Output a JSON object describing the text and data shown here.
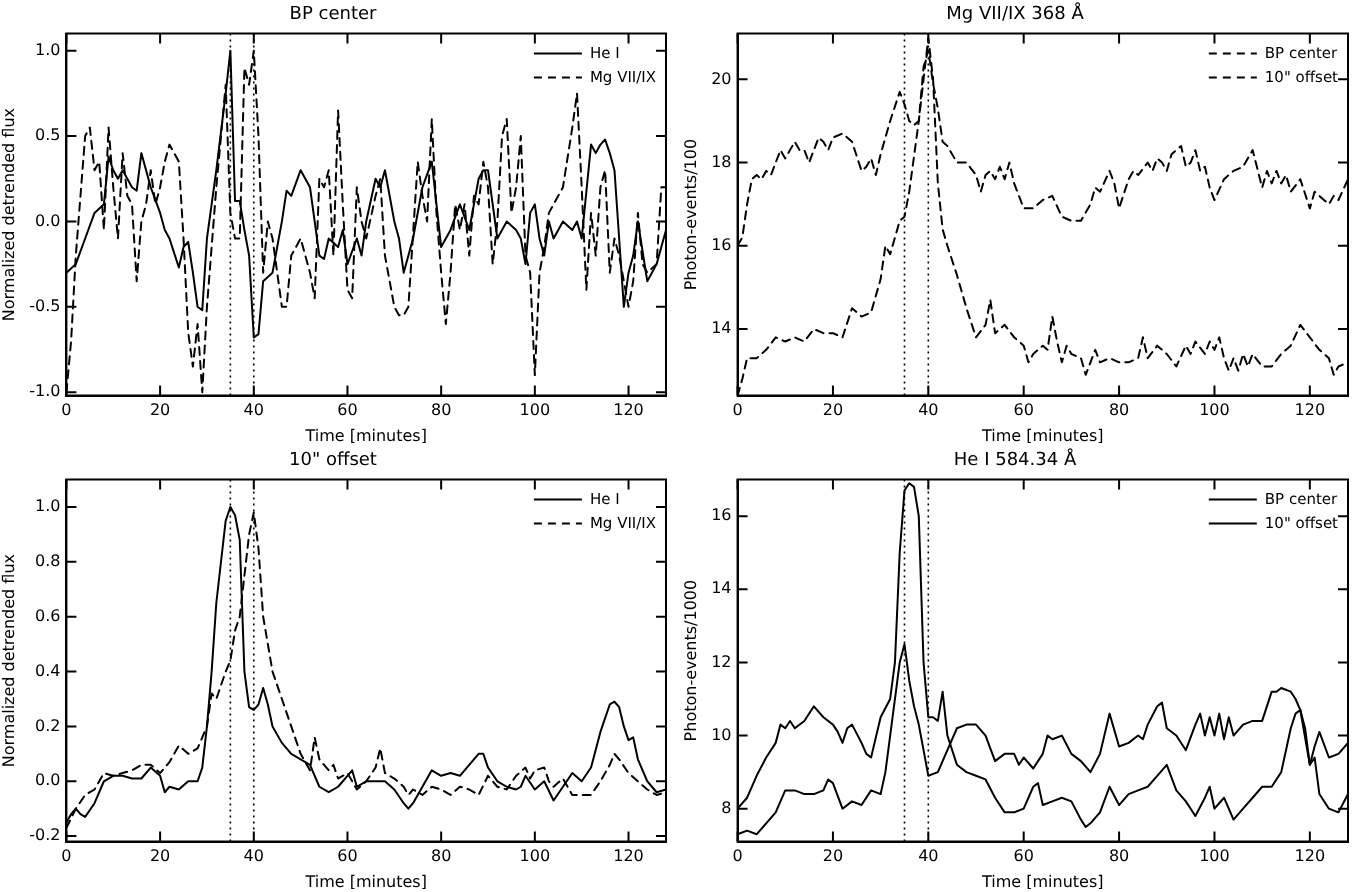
{
  "chart_data": [
    {
      "type": "line",
      "title": "BP center",
      "xlabel": "Time [minutes]",
      "ylabel": "Normalized detrended flux",
      "xlim": [
        0,
        128
      ],
      "xticks": [
        0,
        20,
        40,
        60,
        80,
        100,
        120
      ],
      "ylim": [
        -1.02,
        1.1
      ],
      "yticks": [
        {
          "value": -1,
          "label": "-1.0"
        },
        {
          "value": -0.5,
          "label": "-0.5"
        },
        {
          "value": 0,
          "label": "0.0"
        },
        {
          "value": 0.5,
          "label": "0.5"
        },
        {
          "value": 1,
          "label": "1.0"
        }
      ],
      "grid": false,
      "legend": "top right",
      "marker": "none",
      "ref_lines": [
        {
          "axis": "x",
          "value": 35,
          "color": "#000000",
          "line_style": "dotted"
        },
        {
          "axis": "x",
          "value": 40,
          "color": "#000000",
          "line_style": "dotted"
        }
      ],
      "series": [
        {
          "name": "He I",
          "color": "#000000",
          "line_style": "solid",
          "x": [
            0,
            2,
            4,
            6,
            8,
            9,
            10,
            11,
            12,
            14,
            15,
            16,
            18,
            20,
            21,
            22,
            24,
            25,
            26,
            27,
            28,
            29,
            30,
            32,
            34,
            35,
            36,
            37,
            38,
            39,
            40,
            41,
            42,
            44,
            46,
            47,
            48,
            50,
            52,
            54,
            55,
            56,
            58,
            59,
            60,
            62,
            63,
            64,
            66,
            67,
            68,
            70,
            71,
            72,
            74,
            76,
            78,
            79,
            80,
            82,
            84,
            86,
            88,
            89,
            90,
            92,
            94,
            96,
            97,
            98,
            99,
            100,
            101,
            102,
            103,
            104,
            106,
            108,
            109,
            110,
            112,
            113,
            114,
            115,
            116,
            117,
            118,
            119,
            120,
            121,
            122,
            124,
            126,
            128
          ],
          "values": [
            -0.3,
            -0.25,
            -0.1,
            0.05,
            0.1,
            0.38,
            0.3,
            0.25,
            0.3,
            0.2,
            0.18,
            0.4,
            0.2,
            0.05,
            -0.05,
            -0.1,
            -0.27,
            -0.15,
            -0.12,
            -0.3,
            -0.5,
            -0.52,
            -0.1,
            0.3,
            0.75,
            1.0,
            0.12,
            0.12,
            -0.05,
            -0.2,
            -0.68,
            -0.66,
            -0.35,
            -0.3,
            0.0,
            0.18,
            0.15,
            0.3,
            0.2,
            -0.2,
            -0.22,
            -0.1,
            -0.15,
            -0.05,
            -0.25,
            -0.1,
            -0.2,
            0.0,
            0.25,
            0.2,
            0.3,
            0.0,
            -0.1,
            -0.3,
            -0.1,
            0.2,
            0.35,
            0.1,
            -0.15,
            -0.05,
            0.1,
            -0.05,
            0.25,
            0.3,
            0.3,
            -0.1,
            0.0,
            -0.05,
            -0.1,
            -0.25,
            0.05,
            0.1,
            -0.1,
            -0.2,
            0.0,
            -0.1,
            0.0,
            -0.05,
            0.0,
            -0.1,
            0.45,
            0.4,
            0.45,
            0.48,
            0.4,
            0.3,
            -0.1,
            -0.5,
            -0.3,
            -0.2,
            0.0,
            -0.35,
            -0.25,
            -0.05
          ]
        },
        {
          "name": "Mg VII/IX",
          "color": "#000000",
          "line_style": "dashed",
          "x": [
            0,
            1,
            2,
            4,
            5,
            6,
            7,
            8,
            9,
            10,
            11,
            12,
            13,
            14,
            15,
            16,
            17,
            18,
            19,
            20,
            21,
            22,
            24,
            25,
            26,
            27,
            28,
            29,
            30,
            32,
            33,
            34,
            35,
            36,
            37,
            38,
            39,
            40,
            41,
            42,
            43,
            44,
            46,
            47,
            48,
            50,
            52,
            53,
            54,
            55,
            56,
            57,
            58,
            59,
            60,
            61,
            62,
            63,
            64,
            66,
            67,
            68,
            70,
            71,
            72,
            73,
            75,
            76,
            77,
            78,
            79,
            80,
            81,
            82,
            83,
            84,
            85,
            86,
            87,
            88,
            89,
            90,
            91,
            92,
            93,
            94,
            95,
            96,
            97,
            98,
            99,
            100,
            101,
            102,
            103,
            104,
            106,
            108,
            109,
            110,
            111,
            112,
            113,
            114,
            115,
            116,
            117,
            118,
            120,
            121,
            122,
            123,
            124,
            126,
            127,
            128
          ],
          "values": [
            -1.0,
            -0.7,
            -0.2,
            0.5,
            0.55,
            0.3,
            0.35,
            -0.05,
            0.55,
            0.2,
            -0.1,
            0.4,
            0.15,
            0.1,
            -0.35,
            0.0,
            0.1,
            0.3,
            0.1,
            0.2,
            0.35,
            0.45,
            0.35,
            -0.1,
            -0.65,
            -0.85,
            -0.6,
            -1.0,
            -0.5,
            0.2,
            0.5,
            0.8,
            0.05,
            -0.1,
            -0.1,
            0.9,
            0.8,
            1.0,
            0.5,
            -0.3,
            0.0,
            -0.1,
            -0.5,
            -0.5,
            -0.2,
            -0.1,
            -0.3,
            -0.45,
            0.25,
            0.2,
            0.3,
            -0.2,
            0.65,
            0.1,
            -0.4,
            -0.45,
            0.2,
            0.0,
            -0.1,
            0.15,
            0.25,
            -0.2,
            -0.5,
            -0.55,
            -0.55,
            -0.5,
            0.35,
            0.15,
            0.0,
            0.6,
            0.05,
            -0.3,
            -0.6,
            -0.3,
            0.1,
            -0.05,
            0.1,
            -0.2,
            0.15,
            0.1,
            0.35,
            0.2,
            -0.25,
            0.0,
            0.5,
            0.6,
            0.05,
            0.2,
            0.5,
            -0.2,
            -0.3,
            -0.9,
            -0.3,
            -0.15,
            0.05,
            0.1,
            0.2,
            0.55,
            0.75,
            0.2,
            -0.4,
            0.05,
            -0.2,
            0.2,
            0.3,
            -0.3,
            -0.1,
            -0.2,
            -0.5,
            -0.35,
            0.05,
            -0.25,
            -0.3,
            -0.25,
            0.2,
            0.2
          ]
        }
      ]
    },
    {
      "type": "line",
      "title": "Mg VII/IX 368 Å",
      "xlabel": "Time [minutes]",
      "ylabel": "Photon-events/100",
      "xlim": [
        0,
        128
      ],
      "xticks": [
        0,
        20,
        40,
        60,
        80,
        100,
        120
      ],
      "ylim": [
        12.4,
        21.1
      ],
      "yticks": [
        14,
        16,
        18,
        20
      ],
      "grid": false,
      "legend": "top right",
      "marker": "none",
      "ref_lines": [
        {
          "axis": "x",
          "value": 35,
          "color": "#000000",
          "line_style": "dotted"
        },
        {
          "axis": "x",
          "value": 40,
          "color": "#000000",
          "line_style": "dotted"
        }
      ],
      "series": [
        {
          "name": "BP center",
          "color": "#000000",
          "line_style": "dashed",
          "x": [
            0,
            1,
            2,
            3,
            4,
            5,
            6,
            7,
            8,
            9,
            10,
            11,
            12,
            13,
            14,
            15,
            16,
            17,
            18,
            19,
            20,
            22,
            24,
            26,
            27,
            28,
            29,
            30,
            32,
            34,
            35,
            36,
            37,
            38,
            39,
            40,
            41,
            42,
            43,
            44,
            46,
            48,
            50,
            51,
            52,
            53,
            54,
            55,
            56,
            57,
            58,
            60,
            62,
            64,
            66,
            68,
            70,
            72,
            74,
            75,
            76,
            78,
            79,
            80,
            82,
            83,
            84,
            86,
            87,
            88,
            89,
            90,
            91,
            92,
            93,
            94,
            95,
            96,
            97,
            98,
            99,
            100,
            102,
            104,
            106,
            108,
            110,
            111,
            112,
            113,
            114,
            115,
            116,
            118,
            120,
            121,
            122,
            124,
            125,
            126,
            128
          ],
          "values": [
            16.0,
            16.2,
            17.0,
            17.6,
            17.7,
            17.6,
            17.8,
            17.7,
            18.0,
            18.3,
            18.1,
            18.3,
            18.5,
            18.3,
            18.3,
            18.0,
            18.3,
            18.6,
            18.5,
            18.3,
            18.6,
            18.7,
            18.5,
            17.8,
            17.9,
            18.1,
            17.7,
            18.2,
            19.0,
            19.7,
            19.4,
            19.0,
            18.9,
            19.0,
            20.3,
            20.7,
            19.9,
            19.3,
            18.5,
            18.4,
            18.0,
            18.0,
            17.7,
            17.3,
            17.7,
            17.8,
            17.6,
            17.9,
            17.6,
            18.0,
            17.5,
            16.9,
            16.9,
            17.1,
            17.2,
            16.7,
            16.6,
            16.6,
            17.0,
            17.4,
            17.3,
            17.8,
            17.5,
            16.9,
            17.6,
            17.8,
            17.7,
            18.0,
            17.8,
            18.1,
            18.0,
            17.8,
            18.2,
            18.3,
            18.4,
            17.9,
            18.0,
            18.3,
            17.8,
            17.9,
            17.4,
            17.1,
            17.6,
            17.8,
            17.9,
            18.3,
            17.4,
            17.8,
            17.5,
            17.8,
            17.5,
            17.7,
            17.3,
            17.6,
            16.9,
            17.3,
            17.2,
            17.0,
            17.2,
            17.1,
            17.6
          ]
        },
        {
          "name": "10\" offset",
          "color": "#000000",
          "line_style": "dashed",
          "x": [
            0,
            1,
            2,
            4,
            6,
            8,
            10,
            12,
            14,
            16,
            18,
            20,
            22,
            24,
            26,
            28,
            30,
            31,
            32,
            34,
            35,
            36,
            38,
            39,
            40,
            41,
            42,
            43,
            44,
            46,
            48,
            50,
            52,
            53,
            54,
            56,
            58,
            60,
            61,
            62,
            64,
            65,
            66,
            67,
            68,
            69,
            70,
            72,
            73,
            74,
            75,
            76,
            78,
            80,
            82,
            84,
            85,
            86,
            88,
            89,
            90,
            92,
            94,
            95,
            96,
            98,
            99,
            100,
            101,
            102,
            103,
            104,
            105,
            106,
            107,
            108,
            110,
            112,
            114,
            116,
            118,
            120,
            122,
            124,
            125,
            126,
            128
          ],
          "values": [
            12.4,
            12.8,
            13.3,
            13.3,
            13.5,
            13.8,
            13.7,
            13.8,
            13.7,
            14.0,
            13.9,
            13.9,
            13.8,
            14.5,
            14.3,
            14.4,
            15.2,
            16.0,
            15.8,
            16.6,
            16.7,
            17.3,
            19.0,
            20.0,
            21.0,
            20.0,
            17.5,
            16.4,
            16.0,
            15.3,
            14.5,
            13.8,
            14.1,
            14.7,
            13.9,
            14.1,
            13.8,
            13.6,
            13.2,
            13.4,
            13.6,
            13.5,
            14.3,
            13.7,
            13.2,
            13.6,
            13.4,
            13.3,
            12.9,
            13.2,
            13.5,
            13.2,
            13.3,
            13.2,
            13.2,
            13.3,
            13.8,
            13.3,
            13.6,
            13.5,
            13.4,
            13.1,
            13.6,
            13.4,
            13.7,
            13.4,
            13.7,
            13.5,
            13.8,
            13.3,
            13.0,
            13.3,
            13.0,
            13.4,
            13.1,
            13.4,
            13.1,
            13.1,
            13.4,
            13.6,
            14.1,
            13.8,
            13.5,
            13.3,
            12.9,
            13.1,
            13.2
          ]
        }
      ]
    },
    {
      "type": "line",
      "title": "10\" offset",
      "xlabel": "Time [minutes]",
      "ylabel": "Normalized detrended flux",
      "xlim": [
        0,
        128
      ],
      "xticks": [
        0,
        20,
        40,
        60,
        80,
        100,
        120
      ],
      "ylim": [
        -0.22,
        1.1
      ],
      "yticks": [
        {
          "value": -0.2,
          "label": "-0.2"
        },
        {
          "value": 0,
          "label": "0.0"
        },
        {
          "value": 0.2,
          "label": "0.2"
        },
        {
          "value": 0.4,
          "label": "0.4"
        },
        {
          "value": 0.6,
          "label": "0.6"
        },
        {
          "value": 0.8,
          "label": "0.8"
        },
        {
          "value": 1,
          "label": "1.0"
        }
      ],
      "grid": false,
      "legend": "top right",
      "marker": "none",
      "ref_lines": [
        {
          "axis": "x",
          "value": 35,
          "color": "#000000",
          "line_style": "dotted"
        },
        {
          "axis": "x",
          "value": 40,
          "color": "#000000",
          "line_style": "dotted"
        }
      ],
      "series": [
        {
          "name": "He I",
          "color": "#000000",
          "line_style": "solid",
          "x": [
            0,
            1,
            2,
            3,
            4,
            6,
            8,
            10,
            12,
            14,
            16,
            18,
            20,
            21,
            22,
            24,
            26,
            28,
            29,
            30,
            31,
            32,
            34,
            35,
            36,
            37,
            38,
            39,
            40,
            41,
            42,
            43,
            44,
            46,
            48,
            50,
            52,
            54,
            56,
            58,
            60,
            61,
            62,
            64,
            66,
            68,
            70,
            72,
            73,
            74,
            76,
            78,
            80,
            82,
            84,
            86,
            88,
            89,
            90,
            92,
            94,
            96,
            97,
            98,
            100,
            102,
            104,
            106,
            108,
            110,
            112,
            114,
            116,
            117,
            118,
            119,
            120,
            121,
            122,
            124,
            126,
            128
          ],
          "values": [
            -0.15,
            -0.12,
            -0.1,
            -0.12,
            -0.13,
            -0.08,
            0.0,
            0.02,
            0.02,
            0.01,
            0.01,
            0.05,
            0.02,
            -0.04,
            -0.02,
            -0.03,
            0.0,
            0.0,
            0.05,
            0.2,
            0.4,
            0.65,
            0.95,
            1.0,
            0.97,
            0.88,
            0.4,
            0.27,
            0.26,
            0.28,
            0.34,
            0.28,
            0.2,
            0.14,
            0.1,
            0.08,
            0.06,
            -0.02,
            -0.04,
            -0.02,
            0.02,
            0.04,
            -0.02,
            0.0,
            0.0,
            0.0,
            -0.03,
            -0.08,
            -0.1,
            -0.08,
            -0.02,
            0.04,
            0.02,
            0.03,
            0.02,
            0.06,
            0.1,
            0.1,
            0.05,
            0.0,
            -0.02,
            -0.03,
            -0.02,
            0.02,
            -0.03,
            0.0,
            -0.07,
            -0.02,
            0.03,
            0.0,
            0.05,
            0.18,
            0.28,
            0.29,
            0.27,
            0.2,
            0.15,
            0.16,
            0.08,
            0.0,
            -0.04,
            -0.03
          ]
        },
        {
          "name": "Mg VII/IX",
          "color": "#000000",
          "line_style": "dashed",
          "x": [
            0,
            2,
            4,
            6,
            8,
            10,
            12,
            14,
            16,
            18,
            20,
            22,
            24,
            26,
            28,
            30,
            31,
            32,
            34,
            35,
            36,
            37,
            38,
            39,
            40,
            41,
            42,
            44,
            46,
            48,
            50,
            52,
            53,
            54,
            56,
            57,
            58,
            60,
            62,
            64,
            66,
            67,
            68,
            70,
            72,
            73,
            74,
            76,
            78,
            80,
            82,
            84,
            86,
            88,
            90,
            92,
            94,
            96,
            98,
            99,
            100,
            102,
            103,
            104,
            106,
            108,
            110,
            112,
            114,
            116,
            117,
            118,
            120,
            122,
            124,
            126,
            128
          ],
          "values": [
            -0.17,
            -0.1,
            -0.05,
            -0.03,
            0.03,
            0.02,
            0.03,
            0.04,
            0.06,
            0.06,
            0.03,
            0.07,
            0.13,
            0.1,
            0.12,
            0.2,
            0.32,
            0.3,
            0.4,
            0.44,
            0.55,
            0.6,
            0.75,
            0.9,
            0.98,
            0.85,
            0.6,
            0.4,
            0.3,
            0.2,
            0.1,
            0.04,
            0.16,
            0.08,
            0.04,
            0.06,
            0.01,
            0.03,
            -0.03,
            0.0,
            0.05,
            0.12,
            0.03,
            0.01,
            -0.02,
            -0.05,
            -0.03,
            -0.05,
            -0.02,
            -0.03,
            -0.05,
            -0.02,
            -0.03,
            -0.05,
            0.02,
            -0.02,
            -0.03,
            0.02,
            0.05,
            0.01,
            0.04,
            0.05,
            0.0,
            -0.02,
            0.01,
            -0.05,
            -0.05,
            -0.05,
            0.0,
            0.06,
            0.1,
            0.08,
            0.03,
            0.0,
            -0.03,
            -0.05,
            -0.04
          ]
        }
      ]
    },
    {
      "type": "line",
      "title": "He I 584.34 Å",
      "xlabel": "Time [minutes]",
      "ylabel": "Photon-events/1000",
      "xlim": [
        0,
        128
      ],
      "xticks": [
        0,
        20,
        40,
        60,
        80,
        100,
        120
      ],
      "ylim": [
        7.1,
        17.0
      ],
      "yticks": [
        8,
        10,
        12,
        14,
        16
      ],
      "grid": false,
      "legend": "top right",
      "marker": "none",
      "ref_lines": [
        {
          "axis": "x",
          "value": 35,
          "color": "#000000",
          "line_style": "dotted"
        },
        {
          "axis": "x",
          "value": 40,
          "color": "#000000",
          "line_style": "dotted"
        }
      ],
      "series": [
        {
          "name": "BP center",
          "color": "#000000",
          "line_style": "solid",
          "x": [
            0,
            2,
            4,
            6,
            8,
            9,
            10,
            11,
            12,
            14,
            16,
            18,
            20,
            21,
            22,
            23,
            24,
            26,
            27,
            28,
            30,
            32,
            33,
            34,
            35,
            36,
            37,
            38,
            39,
            40,
            41,
            42,
            43,
            44,
            46,
            48,
            50,
            52,
            54,
            56,
            58,
            60,
            62,
            63,
            64,
            66,
            68,
            70,
            72,
            73,
            74,
            76,
            78,
            80,
            82,
            84,
            86,
            88,
            90,
            92,
            94,
            96,
            98,
            99,
            100,
            102,
            104,
            106,
            108,
            110,
            112,
            114,
            116,
            117,
            118,
            119,
            120,
            121,
            122,
            124,
            126,
            128
          ],
          "values": [
            8.0,
            8.3,
            8.9,
            9.4,
            9.8,
            10.3,
            10.2,
            10.4,
            10.2,
            10.4,
            10.8,
            10.5,
            10.3,
            10.1,
            9.8,
            10.2,
            10.3,
            9.8,
            9.5,
            9.4,
            10.5,
            11.0,
            12.0,
            15.0,
            16.7,
            16.9,
            16.8,
            16.0,
            12.0,
            10.5,
            10.5,
            10.4,
            11.2,
            10.0,
            9.2,
            9.0,
            8.9,
            8.8,
            8.3,
            7.9,
            7.9,
            8.0,
            8.6,
            8.7,
            8.1,
            8.2,
            8.3,
            8.2,
            7.7,
            7.5,
            7.6,
            7.9,
            8.6,
            8.1,
            8.4,
            8.5,
            8.6,
            8.9,
            9.2,
            8.5,
            8.2,
            7.8,
            8.3,
            8.6,
            8.0,
            8.3,
            7.7,
            8.0,
            8.3,
            8.6,
            8.6,
            9.0,
            10.2,
            10.6,
            10.7,
            10.2,
            9.2,
            9.4,
            8.4,
            8.0,
            7.9,
            8.4
          ]
        },
        {
          "name": "10\" offset",
          "color": "#000000",
          "line_style": "solid",
          "x": [
            0,
            2,
            4,
            6,
            8,
            10,
            12,
            14,
            16,
            18,
            19,
            20,
            22,
            24,
            26,
            28,
            30,
            31,
            32,
            34,
            35,
            36,
            37,
            38,
            40,
            42,
            44,
            46,
            48,
            50,
            52,
            54,
            56,
            58,
            59,
            60,
            62,
            64,
            65,
            66,
            68,
            70,
            72,
            74,
            76,
            78,
            80,
            82,
            84,
            85,
            86,
            88,
            89,
            90,
            92,
            94,
            96,
            97,
            98,
            99,
            100,
            101,
            102,
            103,
            104,
            106,
            108,
            110,
            112,
            113,
            114,
            116,
            117,
            118,
            120,
            121,
            122,
            124,
            126,
            128
          ],
          "values": [
            7.3,
            7.4,
            7.3,
            7.6,
            7.9,
            8.5,
            8.5,
            8.4,
            8.4,
            8.5,
            8.8,
            8.7,
            8.0,
            8.2,
            8.1,
            8.5,
            8.4,
            9.0,
            10.0,
            12.0,
            12.5,
            11.5,
            10.8,
            10.3,
            8.9,
            9.0,
            9.6,
            10.2,
            10.3,
            10.3,
            10.0,
            9.3,
            9.5,
            9.5,
            9.2,
            9.4,
            9.1,
            9.5,
            10.0,
            9.9,
            10.0,
            9.5,
            9.3,
            9.0,
            9.5,
            10.6,
            9.7,
            9.8,
            10.0,
            9.9,
            10.3,
            10.8,
            10.9,
            10.2,
            10.0,
            9.6,
            10.3,
            10.6,
            10.0,
            10.5,
            10.0,
            10.6,
            9.9,
            10.5,
            10.0,
            10.3,
            10.4,
            10.4,
            11.2,
            11.2,
            11.3,
            11.2,
            11.0,
            10.7,
            9.2,
            9.7,
            10.1,
            9.4,
            9.5,
            9.8
          ]
        }
      ]
    }
  ]
}
